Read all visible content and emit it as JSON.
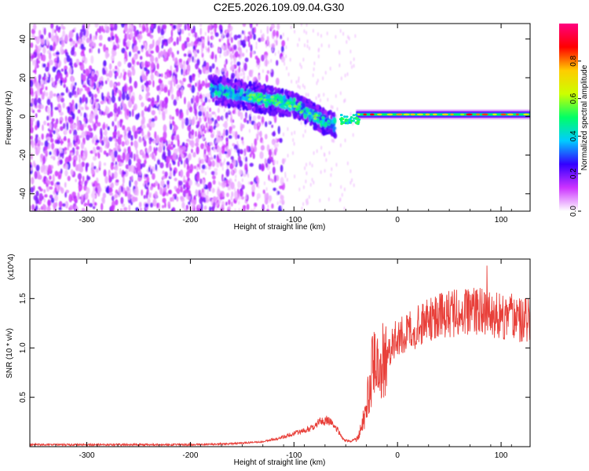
{
  "title": "C2E5.2026.109.09.04.G30",
  "chart_data": [
    {
      "type": "heatmap",
      "xlabel": "Height of straight line (km)",
      "ylabel": "Frequency (Hz)",
      "xlim": [
        -355,
        128
      ],
      "ylim": [
        -49,
        48
      ],
      "xticks": [
        -300,
        -200,
        -100,
        0,
        100
      ],
      "yticks": [
        -40,
        -20,
        0,
        20,
        40
      ],
      "colorbar": {
        "label": "Normalized spectral amplitude",
        "range": [
          0,
          1
        ],
        "ticks": [
          0.0,
          0.2,
          0.4,
          0.6,
          0.8
        ],
        "tick_labels": [
          "0.0",
          "0.2",
          "0.4",
          "0.6",
          "0.8"
        ],
        "stops": [
          "#ffffff",
          "#cc33ff",
          "#3300ff",
          "#00ccff",
          "#00ff66",
          "#ccff00",
          "#ffcc00",
          "#ff0000",
          "#ff0080"
        ]
      },
      "features": [
        {
          "x_range": [
            -355,
            -110
          ],
          "freq_range": [
            -49,
            48
          ],
          "amplitude": 0.05,
          "note": "broadband noise"
        },
        {
          "x_range": [
            -180,
            -60
          ],
          "freq_trend": [
            [
              -180,
              14
            ],
            [
              -140,
              10
            ],
            [
              -100,
              6
            ],
            [
              -70,
              -3
            ],
            [
              -55,
              -5
            ]
          ],
          "amplitude": 0.4
        },
        {
          "x_range": [
            -40,
            128
          ],
          "freq": 1,
          "amplitude": 0.85,
          "note": "narrow tone"
        }
      ]
    },
    {
      "type": "line",
      "xlabel": "Height of straight line (km)",
      "ylabel": "SNR (10 * v/v)",
      "y_multiplier": "(x10^4)",
      "xlim": [
        -355,
        128
      ],
      "ylim": [
        0,
        1.9
      ],
      "xticks": [
        -300,
        -200,
        -100,
        0,
        100
      ],
      "yticks": [
        0.5,
        1.0,
        1.5
      ],
      "ytick_labels": [
        "0.5",
        "1.0",
        "1.5"
      ],
      "color": "#e8403a",
      "series": [
        {
          "x": [
            -355,
            -300,
            -250,
            -200,
            -160,
            -130,
            -110,
            -95,
            -85,
            -75,
            -68,
            -60,
            -52,
            -45,
            -38,
            -32,
            -28,
            -24,
            -20,
            -15,
            -10,
            -5,
            0,
            10,
            20,
            30,
            45,
            60,
            80,
            90,
            100,
            110,
            120,
            128
          ],
          "y": [
            0.02,
            0.02,
            0.02,
            0.02,
            0.03,
            0.05,
            0.1,
            0.15,
            0.18,
            0.25,
            0.27,
            0.2,
            0.07,
            0.05,
            0.1,
            0.3,
            0.55,
            0.8,
            0.9,
            0.85,
            0.95,
            1.05,
            1.1,
            1.15,
            1.22,
            1.28,
            1.33,
            1.36,
            1.38,
            1.34,
            1.32,
            1.33,
            1.28,
            1.3
          ]
        }
      ]
    }
  ]
}
